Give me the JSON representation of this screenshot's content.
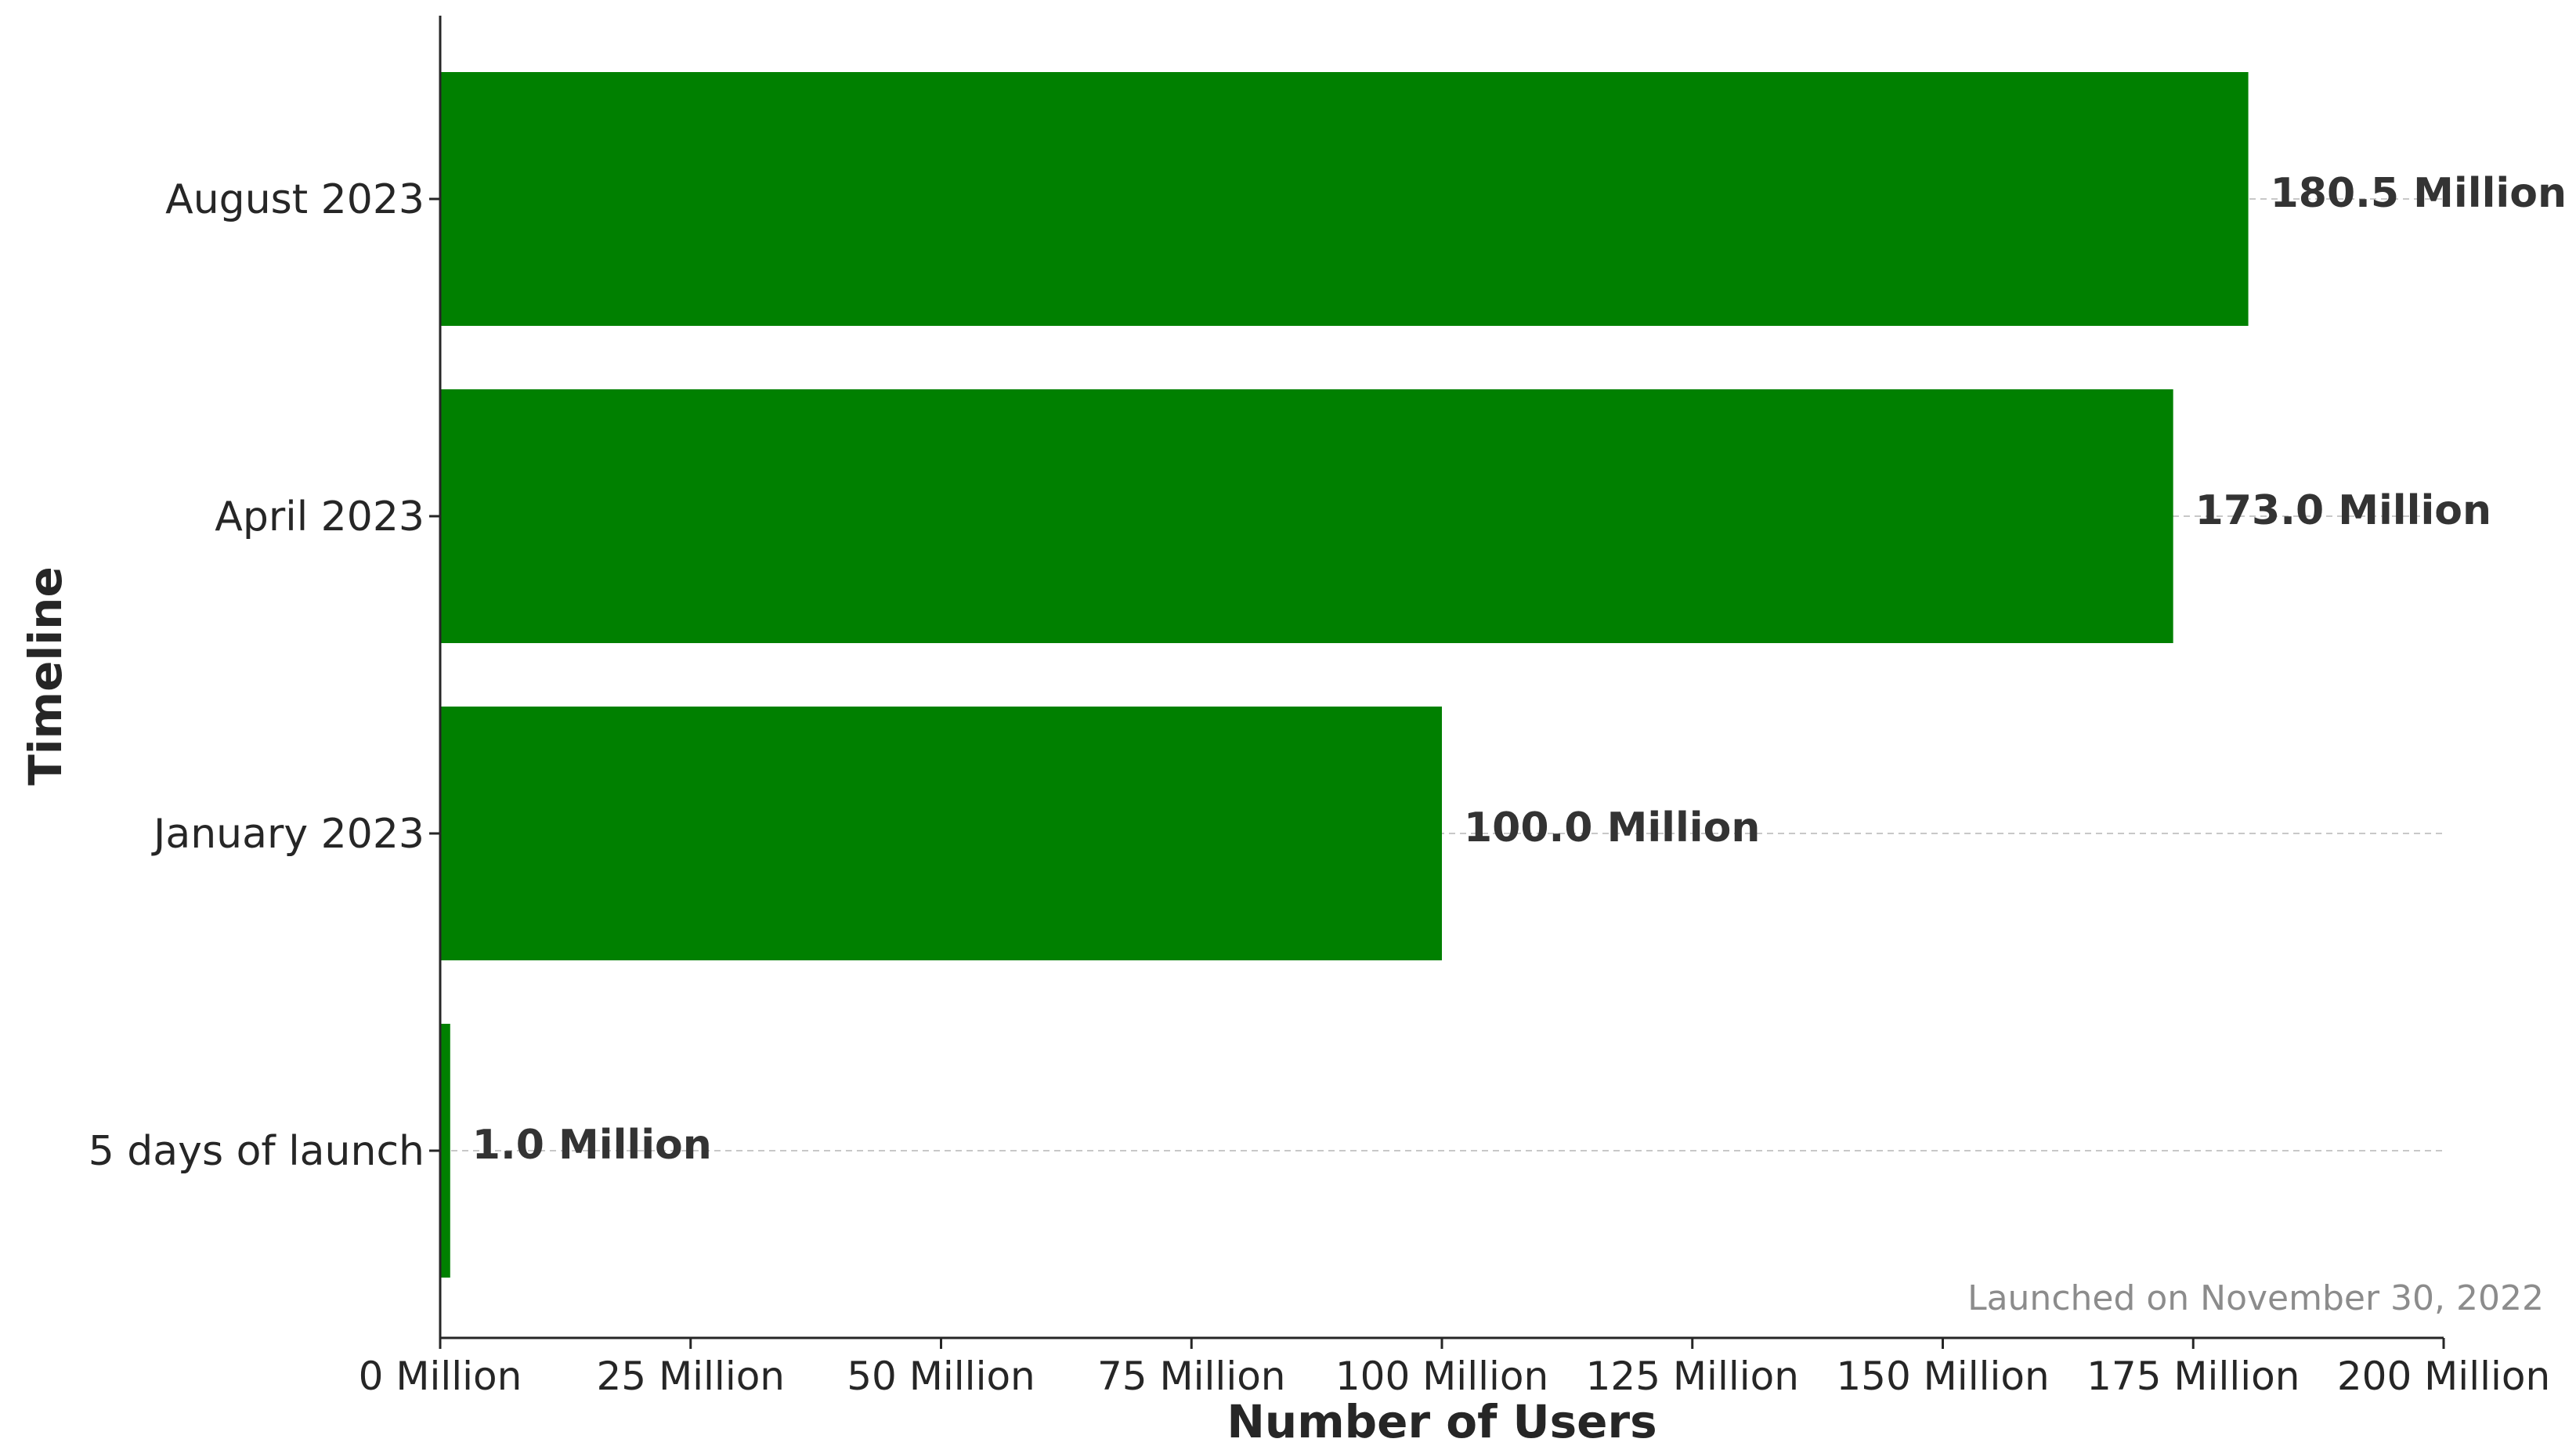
{
  "chart_data": {
    "type": "bar",
    "orientation": "horizontal",
    "categories": [
      "5 days of launch",
      "January 2023",
      "April 2023",
      "August 2023"
    ],
    "values": [
      1.0,
      100.0,
      173.0,
      180.5
    ],
    "value_labels": [
      "1.0 Million",
      "100.0 Million",
      "173.0 Million",
      "180.5 Million"
    ],
    "xlabel": "Number of Users",
    "ylabel": "Timeline",
    "xlim": [
      0,
      200
    ],
    "xticks": [
      0,
      25,
      50,
      75,
      100,
      125,
      150,
      175,
      200
    ],
    "xtick_labels": [
      "0 Million",
      "25 Million",
      "50 Million",
      "75 Million",
      "100 Million",
      "125 Million",
      "150 Million",
      "175 Million",
      "200 Million"
    ],
    "annotation": "Launched on November 30, 2022",
    "grid": "horizontal dashed",
    "bar_color": "#008000"
  }
}
